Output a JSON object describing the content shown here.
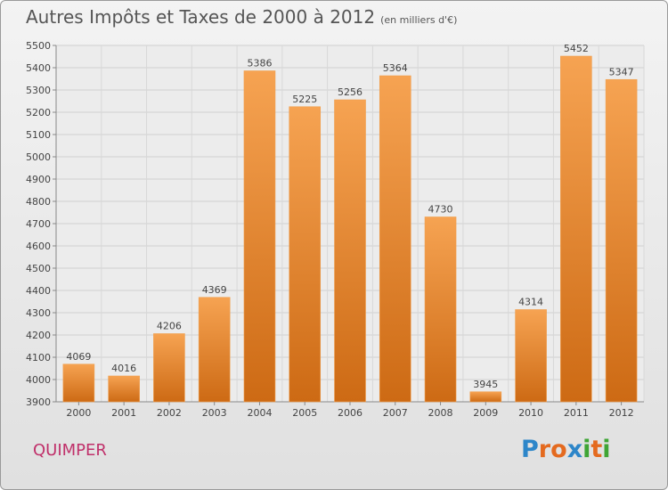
{
  "title": "Autres Impôts et Taxes de 2000 à 2012",
  "unit_note": "(en milliers d'€)",
  "city": "QUIMPER",
  "logo": {
    "letters": [
      "P",
      "r",
      "o",
      "x",
      "i",
      "t",
      "i"
    ],
    "colors": [
      "#2d86c9",
      "#e46a1f",
      "#e46a1f",
      "#2d86c9",
      "#3fa535",
      "#e46a1f",
      "#3fa535"
    ]
  },
  "colors": {
    "bar": "#f0902f",
    "bar_dark": "#cf6c15",
    "title": "#555555",
    "city": "#c0306a"
  },
  "chart_data": {
    "type": "bar",
    "categories": [
      "2000",
      "2001",
      "2002",
      "2003",
      "2004",
      "2005",
      "2006",
      "2007",
      "2008",
      "2009",
      "2010",
      "2011",
      "2012"
    ],
    "values": [
      4069,
      4016,
      4206,
      4369,
      5386,
      5225,
      5256,
      5364,
      4730,
      3945,
      4314,
      5452,
      5347
    ],
    "ylim": [
      3900,
      5500
    ],
    "yticks": [
      3900,
      4000,
      4100,
      4200,
      4300,
      4400,
      4500,
      4600,
      4700,
      4800,
      4900,
      5000,
      5100,
      5200,
      5300,
      5400,
      5500
    ],
    "grid": true,
    "xlabel": "",
    "ylabel": ""
  }
}
